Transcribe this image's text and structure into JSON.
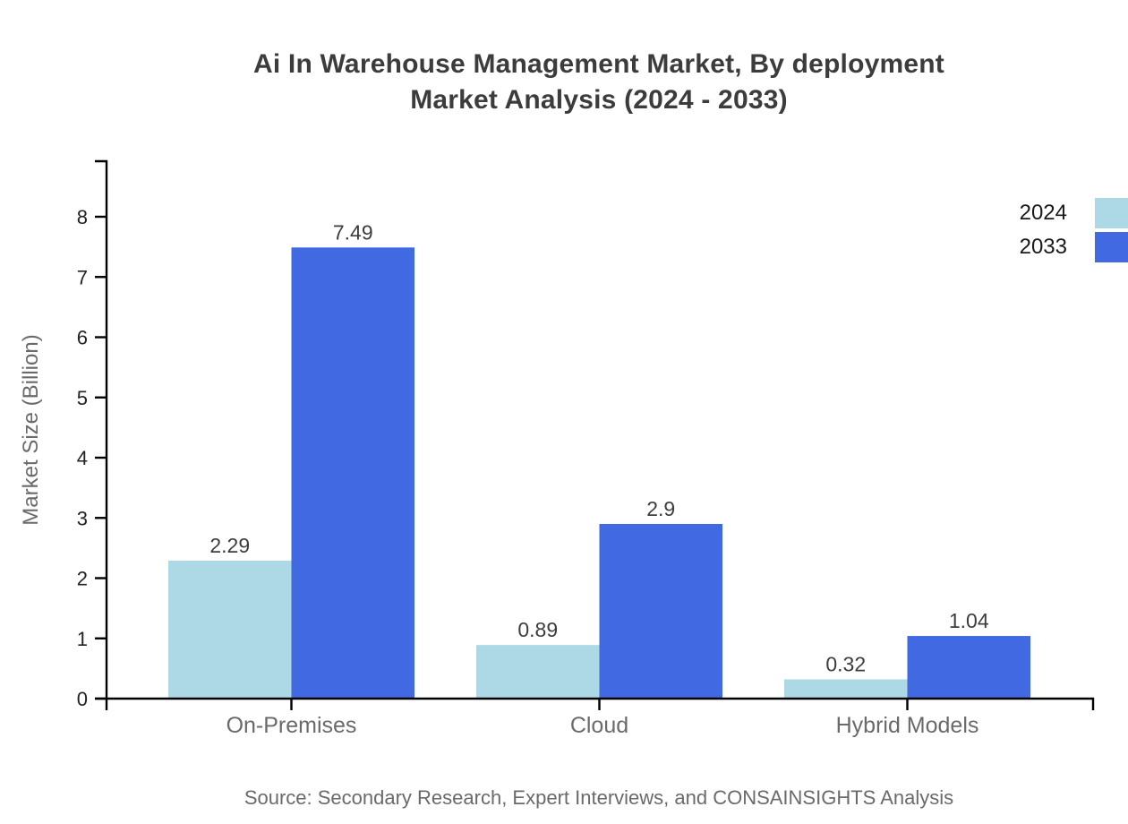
{
  "title": {
    "line1": "Ai In Warehouse Management Market, By deployment",
    "line2": "Market Analysis (2024 - 2033)"
  },
  "source": "Source: Secondary Research, Expert Interviews, and CONSAINSIGHTS Analysis",
  "chart_data": {
    "type": "bar",
    "title": "Ai In Warehouse Management Market, By deployment Market Analysis (2024 - 2033)",
    "xlabel": "",
    "ylabel": "Market Size (Billion)",
    "categories": [
      "On-Premises",
      "Cloud",
      "Hybrid Models"
    ],
    "series": [
      {
        "name": "2024",
        "color": "#ADD8E6",
        "values": [
          2.29,
          0.89,
          0.32
        ],
        "labels": [
          "2.29",
          "0.89",
          "0.32"
        ]
      },
      {
        "name": "2033",
        "color": "#4169E1",
        "values": [
          7.49,
          2.9,
          1.04
        ],
        "labels": [
          "7.49",
          "2.9",
          "1.04"
        ]
      }
    ],
    "yticks": [
      0,
      1,
      2,
      3,
      4,
      5,
      6,
      7,
      8
    ],
    "ylim": [
      0,
      8.9
    ],
    "grid": false,
    "legend_position": "top-right",
    "bar_value_labels": true
  }
}
